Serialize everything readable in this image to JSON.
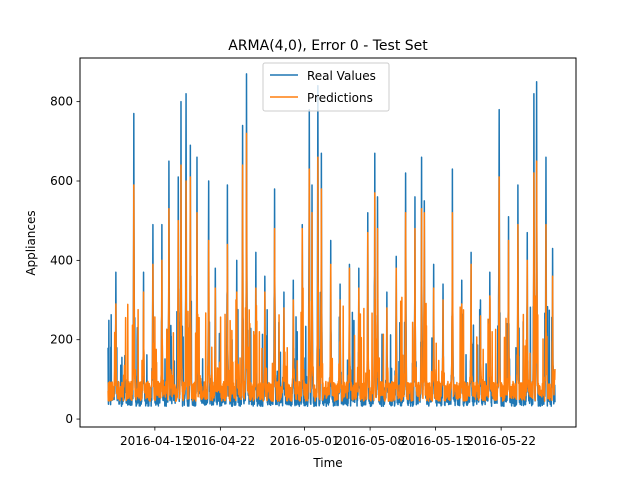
{
  "chart_data": {
    "type": "line",
    "title": "ARMA(4,0), Error 0 - Test Set",
    "xlabel": "Time",
    "ylabel": "Appliances",
    "x_start": "2016-04-10",
    "x_end": "2016-05-27",
    "xlim": [
      "2016-04-07",
      "2016-05-30"
    ],
    "ylim": [
      -20,
      910
    ],
    "x_ticks": [
      "2016-04-15",
      "2016-04-22",
      "2016-05-01",
      "2016-05-08",
      "2016-05-15",
      "2016-05-22"
    ],
    "x_tick_dates": [
      "2016-04-15",
      "2016-04-22",
      "2016-05-01",
      "2016-05-08",
      "2016-05-15",
      "2016-05-22"
    ],
    "y_ticks": [
      0,
      200,
      400,
      600,
      800
    ],
    "legend_position": "upper center",
    "grid": false,
    "series": [
      {
        "name": "Real Values",
        "color": "#1f77b4",
        "peaks": [
          [
            "2016-04-10T20:00",
            370
          ],
          [
            "2016-04-11T19:00",
            160
          ],
          [
            "2016-04-12T18:00",
            770
          ],
          [
            "2016-04-13T19:00",
            370
          ],
          [
            "2016-04-14T19:00",
            490
          ],
          [
            "2016-04-15T18:00",
            490
          ],
          [
            "2016-04-16T12:00",
            650
          ],
          [
            "2016-04-17T12:00",
            610
          ],
          [
            "2016-04-17T19:00",
            800
          ],
          [
            "2016-04-18T08:00",
            820
          ],
          [
            "2016-04-18T19:00",
            690
          ],
          [
            "2016-04-19T12:00",
            660
          ],
          [
            "2016-04-20T18:00",
            600
          ],
          [
            "2016-04-21T11:00",
            380
          ],
          [
            "2016-04-22T18:00",
            590
          ],
          [
            "2016-04-23T18:00",
            400
          ],
          [
            "2016-04-24T09:00",
            740
          ],
          [
            "2016-04-24T19:00",
            870
          ],
          [
            "2016-04-25T19:00",
            420
          ],
          [
            "2016-04-26T18:00",
            360
          ],
          [
            "2016-04-27T19:00",
            580
          ],
          [
            "2016-04-28T19:00",
            320
          ],
          [
            "2016-04-29T19:00",
            350
          ],
          [
            "2016-04-30T18:00",
            490
          ],
          [
            "2016-05-01T12:00",
            780
          ],
          [
            "2016-05-01T19:00",
            590
          ],
          [
            "2016-05-02T10:00",
            840
          ],
          [
            "2016-05-02T19:00",
            670
          ],
          [
            "2016-05-03T19:00",
            450
          ],
          [
            "2016-05-04T19:00",
            340
          ],
          [
            "2016-05-05T19:00",
            390
          ],
          [
            "2016-05-06T19:00",
            380
          ],
          [
            "2016-05-07T18:00",
            520
          ],
          [
            "2016-05-08T12:00",
            670
          ],
          [
            "2016-05-08T19:00",
            560
          ],
          [
            "2016-05-09T19:00",
            320
          ],
          [
            "2016-05-10T19:00",
            410
          ],
          [
            "2016-05-11T19:00",
            620
          ],
          [
            "2016-05-12T19:00",
            560
          ],
          [
            "2016-05-13T12:00",
            660
          ],
          [
            "2016-05-13T19:00",
            550
          ],
          [
            "2016-05-14T19:00",
            390
          ],
          [
            "2016-05-15T19:00",
            340
          ],
          [
            "2016-05-16T19:00",
            630
          ],
          [
            "2016-05-17T19:00",
            350
          ],
          [
            "2016-05-18T19:00",
            420
          ],
          [
            "2016-05-19T19:00",
            300
          ],
          [
            "2016-05-20T19:00",
            370
          ],
          [
            "2016-05-21T19:00",
            780
          ],
          [
            "2016-05-22T19:00",
            510
          ],
          [
            "2016-05-23T19:00",
            590
          ],
          [
            "2016-05-24T19:00",
            470
          ],
          [
            "2016-05-25T12:00",
            820
          ],
          [
            "2016-05-25T19:00",
            850
          ],
          [
            "2016-05-26T19:00",
            660
          ],
          [
            "2016-05-27T12:00",
            430
          ]
        ]
      },
      {
        "name": "Predictions",
        "color": "#ff7f0e",
        "peaks": [
          [
            "2016-04-10T20:00",
            290
          ],
          [
            "2016-04-11T19:00",
            130
          ],
          [
            "2016-04-12T18:00",
            590
          ],
          [
            "2016-04-13T19:00",
            320
          ],
          [
            "2016-04-14T19:00",
            390
          ],
          [
            "2016-04-15T18:00",
            400
          ],
          [
            "2016-04-16T12:00",
            530
          ],
          [
            "2016-04-17T12:00",
            500
          ],
          [
            "2016-04-17T19:00",
            640
          ],
          [
            "2016-04-18T08:00",
            600
          ],
          [
            "2016-04-18T19:00",
            610
          ],
          [
            "2016-04-19T12:00",
            520
          ],
          [
            "2016-04-20T18:00",
            450
          ],
          [
            "2016-04-21T11:00",
            330
          ],
          [
            "2016-04-22T18:00",
            440
          ],
          [
            "2016-04-23T18:00",
            320
          ],
          [
            "2016-04-24T09:00",
            640
          ],
          [
            "2016-04-24T19:00",
            720
          ],
          [
            "2016-04-25T19:00",
            330
          ],
          [
            "2016-04-26T18:00",
            320
          ],
          [
            "2016-04-27T19:00",
            480
          ],
          [
            "2016-04-28T19:00",
            280
          ],
          [
            "2016-04-29T19:00",
            300
          ],
          [
            "2016-04-30T18:00",
            480
          ],
          [
            "2016-05-01T12:00",
            630
          ],
          [
            "2016-05-01T19:00",
            520
          ],
          [
            "2016-05-02T10:00",
            660
          ],
          [
            "2016-05-02T19:00",
            580
          ],
          [
            "2016-05-03T19:00",
            390
          ],
          [
            "2016-05-04T19:00",
            300
          ],
          [
            "2016-05-05T19:00",
            380
          ],
          [
            "2016-05-06T19:00",
            330
          ],
          [
            "2016-05-07T18:00",
            470
          ],
          [
            "2016-05-08T12:00",
            570
          ],
          [
            "2016-05-08T19:00",
            480
          ],
          [
            "2016-05-09T19:00",
            280
          ],
          [
            "2016-05-10T19:00",
            380
          ],
          [
            "2016-05-11T19:00",
            520
          ],
          [
            "2016-05-12T19:00",
            480
          ],
          [
            "2016-05-13T12:00",
            530
          ],
          [
            "2016-05-13T19:00",
            520
          ],
          [
            "2016-05-14T19:00",
            330
          ],
          [
            "2016-05-15T19:00",
            300
          ],
          [
            "2016-05-16T19:00",
            520
          ],
          [
            "2016-05-17T19:00",
            290
          ],
          [
            "2016-05-18T19:00",
            390
          ],
          [
            "2016-05-19T19:00",
            260
          ],
          [
            "2016-05-20T19:00",
            310
          ],
          [
            "2016-05-21T19:00",
            610
          ],
          [
            "2016-05-22T19:00",
            450
          ],
          [
            "2016-05-23T19:00",
            490
          ],
          [
            "2016-05-24T19:00",
            400
          ],
          [
            "2016-05-25T12:00",
            620
          ],
          [
            "2016-05-25T19:00",
            650
          ],
          [
            "2016-05-26T19:00",
            490
          ],
          [
            "2016-05-27T12:00",
            360
          ]
        ]
      }
    ]
  }
}
